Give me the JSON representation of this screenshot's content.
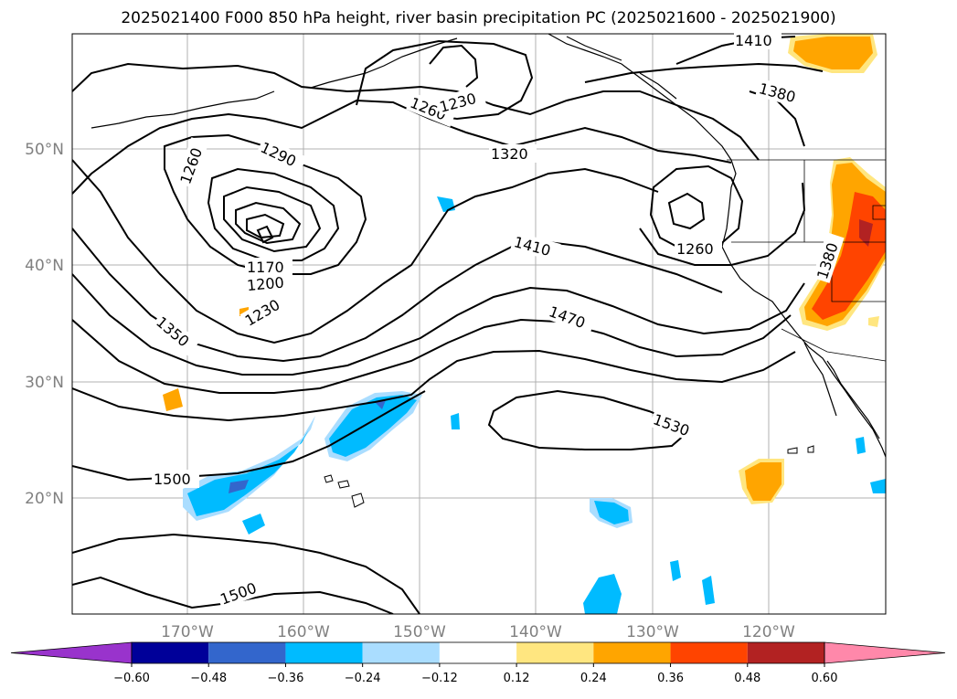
{
  "title": "2025021400 F000 850 hPa height, river basin precipitation PC (2025021600 - 2025021900)",
  "map": {
    "lon_labels": [
      "170°W",
      "160°W",
      "150°W",
      "140°W",
      "130°W",
      "120°W"
    ],
    "lat_labels": [
      "50°N",
      "40°N",
      "30°N",
      "20°N"
    ],
    "contour_labels": [
      "1410",
      "1380",
      "1260",
      "1230",
      "1290",
      "1320",
      "1260",
      "1170",
      "1200",
      "1230",
      "1350",
      "1410",
      "1260",
      "1380",
      "1470",
      "1530",
      "1500",
      "1500"
    ]
  },
  "colorbar": {
    "colors": [
      "#9933cc",
      "#000099",
      "#3366cc",
      "#00bbff",
      "#aaddff",
      "#ffffff",
      "#ffe680",
      "#ffa500",
      "#ff4400",
      "#b22222",
      "#ff88aa"
    ],
    "tick_labels": [
      "−0.60",
      "−0.48",
      "−0.36",
      "−0.24",
      "−0.12",
      "0.12",
      "0.24",
      "0.36",
      "0.48",
      "0.60"
    ]
  }
}
